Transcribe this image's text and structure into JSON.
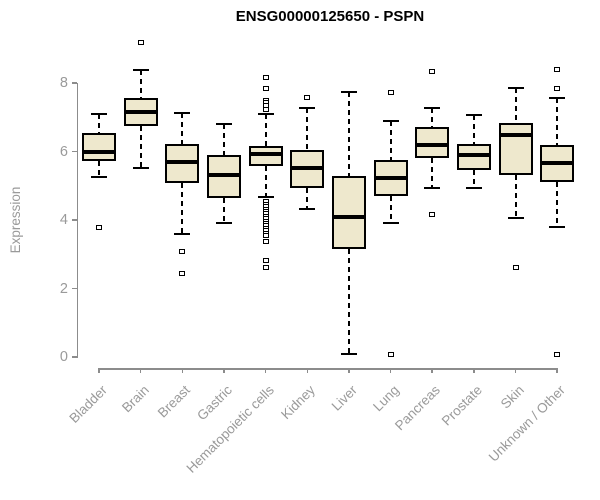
{
  "title": "ENSG00000125650 - PSPN",
  "chart_data": {
    "type": "boxplot",
    "title": "ENSG00000125650 - PSPN",
    "ylabel": "Expression",
    "xlabel": "",
    "ylim": [
      0,
      9.3
    ],
    "yticks": [
      0,
      2,
      4,
      6,
      8
    ],
    "grid": false,
    "legend": null,
    "box_fill": "#EEE8CD",
    "box_border": "#000000",
    "axis_color": "#8c8c8c",
    "label_color": "#9a9a9a",
    "categories": [
      "Bladder",
      "Brain",
      "Breast",
      "Gastric",
      "Hematopoietic cells",
      "Kidney",
      "Liver",
      "Lung",
      "Pancreas",
      "Prostate",
      "Skin",
      "Unknown / Other"
    ],
    "series": [
      {
        "category": "Bladder",
        "whisker_low": 5.26,
        "q1": 5.72,
        "median": 5.98,
        "q3": 6.53,
        "whisker_high": 7.1,
        "outliers": [
          3.77
        ]
      },
      {
        "category": "Brain",
        "whisker_low": 5.52,
        "q1": 6.74,
        "median": 7.15,
        "q3": 7.56,
        "whisker_high": 8.38,
        "outliers": [
          9.18
        ]
      },
      {
        "category": "Breast",
        "whisker_low": 3.59,
        "q1": 5.08,
        "median": 5.69,
        "q3": 6.22,
        "whisker_high": 7.12,
        "outliers": [
          3.09,
          2.45
        ]
      },
      {
        "category": "Gastric",
        "whisker_low": 3.91,
        "q1": 4.64,
        "median": 5.31,
        "q3": 5.9,
        "whisker_high": 6.8,
        "outliers": []
      },
      {
        "category": "Hematopoietic cells",
        "whisker_low": 4.68,
        "q1": 5.58,
        "median": 5.93,
        "q3": 6.17,
        "whisker_high": 7.1,
        "outliers": [
          8.17,
          7.84,
          7.5,
          7.42,
          7.34,
          7.22,
          4.53,
          4.46,
          4.39,
          4.32,
          4.25,
          4.18,
          4.11,
          4.04,
          3.97,
          3.9,
          3.83,
          3.76,
          3.69,
          3.62,
          3.55,
          3.36,
          2.83,
          2.6
        ]
      },
      {
        "category": "Kidney",
        "whisker_low": 4.32,
        "q1": 4.93,
        "median": 5.52,
        "q3": 6.04,
        "whisker_high": 7.27,
        "outliers": [
          7.57
        ]
      },
      {
        "category": "Liver",
        "whisker_low": 0.09,
        "q1": 3.15,
        "median": 4.09,
        "q3": 5.28,
        "whisker_high": 7.73,
        "outliers": []
      },
      {
        "category": "Lung",
        "whisker_low": 3.91,
        "q1": 4.7,
        "median": 5.23,
        "q3": 5.75,
        "whisker_high": 6.89,
        "outliers": [
          7.73,
          0.06
        ]
      },
      {
        "category": "Pancreas",
        "whisker_low": 4.93,
        "q1": 5.81,
        "median": 6.19,
        "q3": 6.72,
        "whisker_high": 7.27,
        "outliers": [
          8.33,
          4.17
        ]
      },
      {
        "category": "Prostate",
        "whisker_low": 4.93,
        "q1": 5.46,
        "median": 5.9,
        "q3": 6.22,
        "whisker_high": 7.07,
        "outliers": []
      },
      {
        "category": "Skin",
        "whisker_low": 4.06,
        "q1": 5.31,
        "median": 6.48,
        "q3": 6.83,
        "whisker_high": 7.86,
        "outliers": [
          2.6
        ]
      },
      {
        "category": "Unknown / Other",
        "whisker_low": 3.8,
        "q1": 5.11,
        "median": 5.66,
        "q3": 6.19,
        "whisker_high": 7.56,
        "outliers": [
          8.38,
          7.84,
          0.06
        ]
      }
    ]
  }
}
